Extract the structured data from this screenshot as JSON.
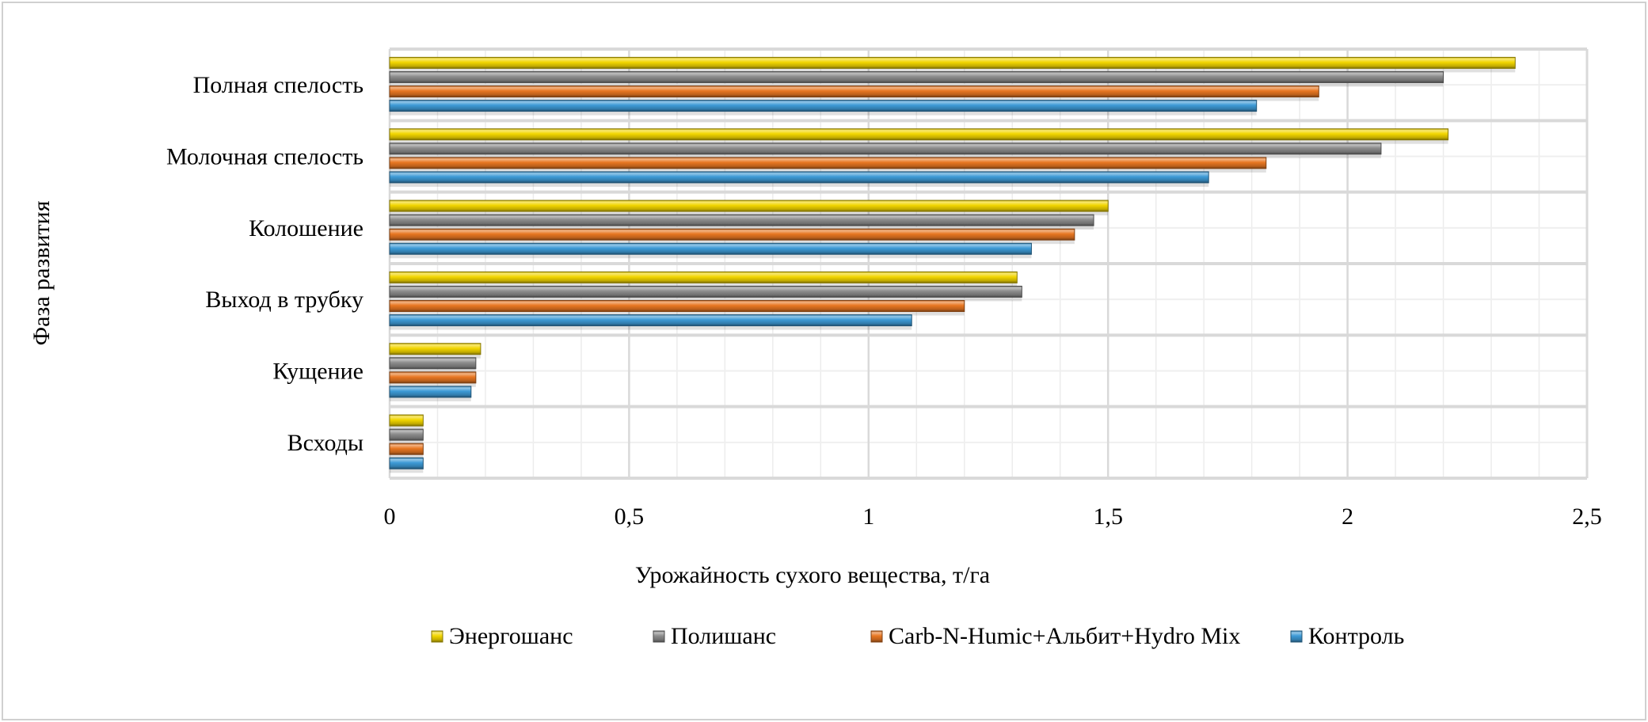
{
  "chart_data": {
    "type": "bar",
    "orientation": "horizontal",
    "title": "",
    "xlabel": "Урожайность сухого вещества, т/га",
    "ylabel": "Фаза развития",
    "xlim": [
      0,
      2.5
    ],
    "x_ticks": [
      "0",
      "0,5",
      "1",
      "1,5",
      "2",
      "2,5"
    ],
    "x_tick_values": [
      0,
      0.5,
      1,
      1.5,
      2,
      2.5
    ],
    "minor_grid_step": 0.1,
    "grid": true,
    "legend_position": "bottom",
    "categories": [
      "Полная спелость",
      "Молочная спелость",
      "Колошение",
      "Выход в трубку",
      "Кущение",
      "Всходы"
    ],
    "series": [
      {
        "name": "Энергошанс",
        "color": "#f2d600",
        "values": [
          2.35,
          2.21,
          1.5,
          1.31,
          0.19,
          0.07
        ]
      },
      {
        "name": "Полишанс",
        "color": "#8c8c8c",
        "values": [
          2.2,
          2.07,
          1.47,
          1.32,
          0.18,
          0.07
        ]
      },
      {
        "name": "Carb-N-Humic+Альбит+Hydro Mix",
        "color": "#e87722",
        "values": [
          1.94,
          1.83,
          1.43,
          1.2,
          0.18,
          0.07
        ]
      },
      {
        "name": "Контроль",
        "color": "#3d9ad6",
        "values": [
          1.81,
          1.71,
          1.34,
          1.09,
          0.17,
          0.07
        ]
      }
    ]
  }
}
